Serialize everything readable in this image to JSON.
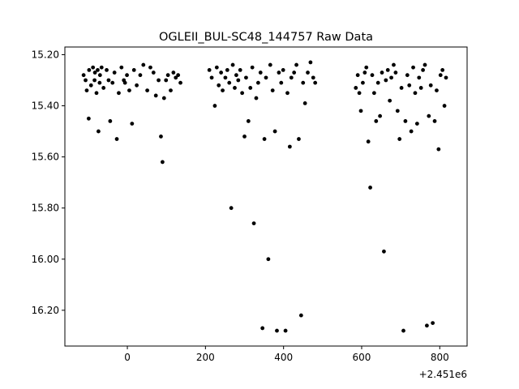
{
  "chart_data": {
    "type": "scatter",
    "title": "OGLEII_BUL-SC48_144757 Raw Data",
    "xlabel": "",
    "ylabel": "",
    "x_offset_label": "+2.451e6",
    "xlim": [
      -160,
      870
    ],
    "ylim": [
      16.34,
      15.17
    ],
    "y_inverted": true,
    "grid": false,
    "marker_color": "#000000",
    "x_ticks": [
      0,
      200,
      400,
      600,
      800
    ],
    "x_tick_labels": [
      "0",
      "200",
      "400",
      "600",
      "800"
    ],
    "y_ticks": [
      15.2,
      15.4,
      15.6,
      15.8,
      16.0,
      16.2
    ],
    "y_tick_labels": [
      "15.20",
      "15.40",
      "15.60",
      "15.80",
      "16.00",
      "16.20"
    ],
    "x": [
      -112,
      -107,
      -104,
      -99,
      -98,
      -93,
      -88,
      -84,
      -83,
      -79,
      -76,
      -74,
      -71,
      -70,
      -66,
      -61,
      -53,
      -48,
      -44,
      -38,
      -33,
      -27,
      -22,
      -15,
      -9,
      -6,
      -1,
      5,
      12,
      17,
      24,
      33,
      41,
      51,
      59,
      67,
      73,
      80,
      86,
      90,
      94,
      99,
      104,
      111,
      118,
      124,
      130,
      136,
      210,
      216,
      224,
      229,
      234,
      240,
      244,
      251,
      256,
      261,
      266,
      270,
      275,
      279,
      284,
      289,
      294,
      300,
      304,
      310,
      315,
      320,
      324,
      330,
      335,
      341,
      346,
      351,
      355,
      361,
      366,
      372,
      378,
      383,
      388,
      394,
      399,
      405,
      410,
      416,
      420,
      427,
      433,
      439,
      445,
      450,
      455,
      462,
      469,
      476,
      481,
      585,
      590,
      594,
      598,
      603,
      608,
      612,
      617,
      622,
      627,
      632,
      637,
      642,
      647,
      652,
      657,
      662,
      667,
      672,
      676,
      682,
      687,
      692,
      697,
      702,
      707,
      712,
      717,
      722,
      727,
      732,
      737,
      742,
      747,
      752,
      757,
      762,
      767,
      772,
      777,
      782,
      787,
      792,
      797,
      802,
      807,
      812,
      816
    ],
    "y": [
      15.28,
      15.3,
      15.34,
      15.45,
      15.26,
      15.32,
      15.25,
      15.3,
      15.27,
      15.35,
      15.26,
      15.5,
      15.31,
      15.28,
      15.25,
      15.33,
      15.26,
      15.3,
      15.46,
      15.31,
      15.27,
      15.53,
      15.35,
      15.25,
      15.3,
      15.31,
      15.28,
      15.34,
      15.47,
      15.26,
      15.32,
      15.28,
      15.24,
      15.34,
      15.25,
      15.27,
      15.36,
      15.3,
      15.52,
      15.62,
      15.37,
      15.3,
      15.28,
      15.34,
      15.27,
      15.29,
      15.28,
      15.31,
      15.26,
      15.29,
      15.4,
      15.25,
      15.32,
      15.27,
      15.34,
      15.29,
      15.26,
      15.31,
      15.8,
      15.24,
      15.33,
      15.28,
      15.3,
      15.26,
      15.35,
      15.52,
      15.29,
      15.46,
      15.33,
      15.25,
      15.86,
      15.37,
      15.31,
      15.27,
      16.27,
      15.53,
      15.29,
      16.0,
      15.24,
      15.34,
      15.5,
      16.28,
      15.27,
      15.31,
      15.26,
      16.28,
      15.35,
      15.56,
      15.29,
      15.27,
      15.24,
      15.53,
      16.22,
      15.31,
      15.39,
      15.27,
      15.23,
      15.29,
      15.31,
      15.33,
      15.28,
      15.35,
      15.42,
      15.31,
      15.27,
      15.25,
      15.54,
      15.72,
      15.28,
      15.35,
      15.46,
      15.31,
      15.44,
      15.27,
      15.97,
      15.3,
      15.26,
      15.38,
      15.29,
      15.24,
      15.27,
      15.42,
      15.53,
      15.33,
      16.28,
      15.46,
      15.28,
      15.32,
      15.5,
      15.25,
      15.35,
      15.47,
      15.29,
      15.33,
      15.26,
      15.24,
      16.26,
      15.44,
      15.32,
      16.25,
      15.46,
      15.34,
      15.57,
      15.28,
      15.26,
      15.4,
      15.29
    ]
  }
}
